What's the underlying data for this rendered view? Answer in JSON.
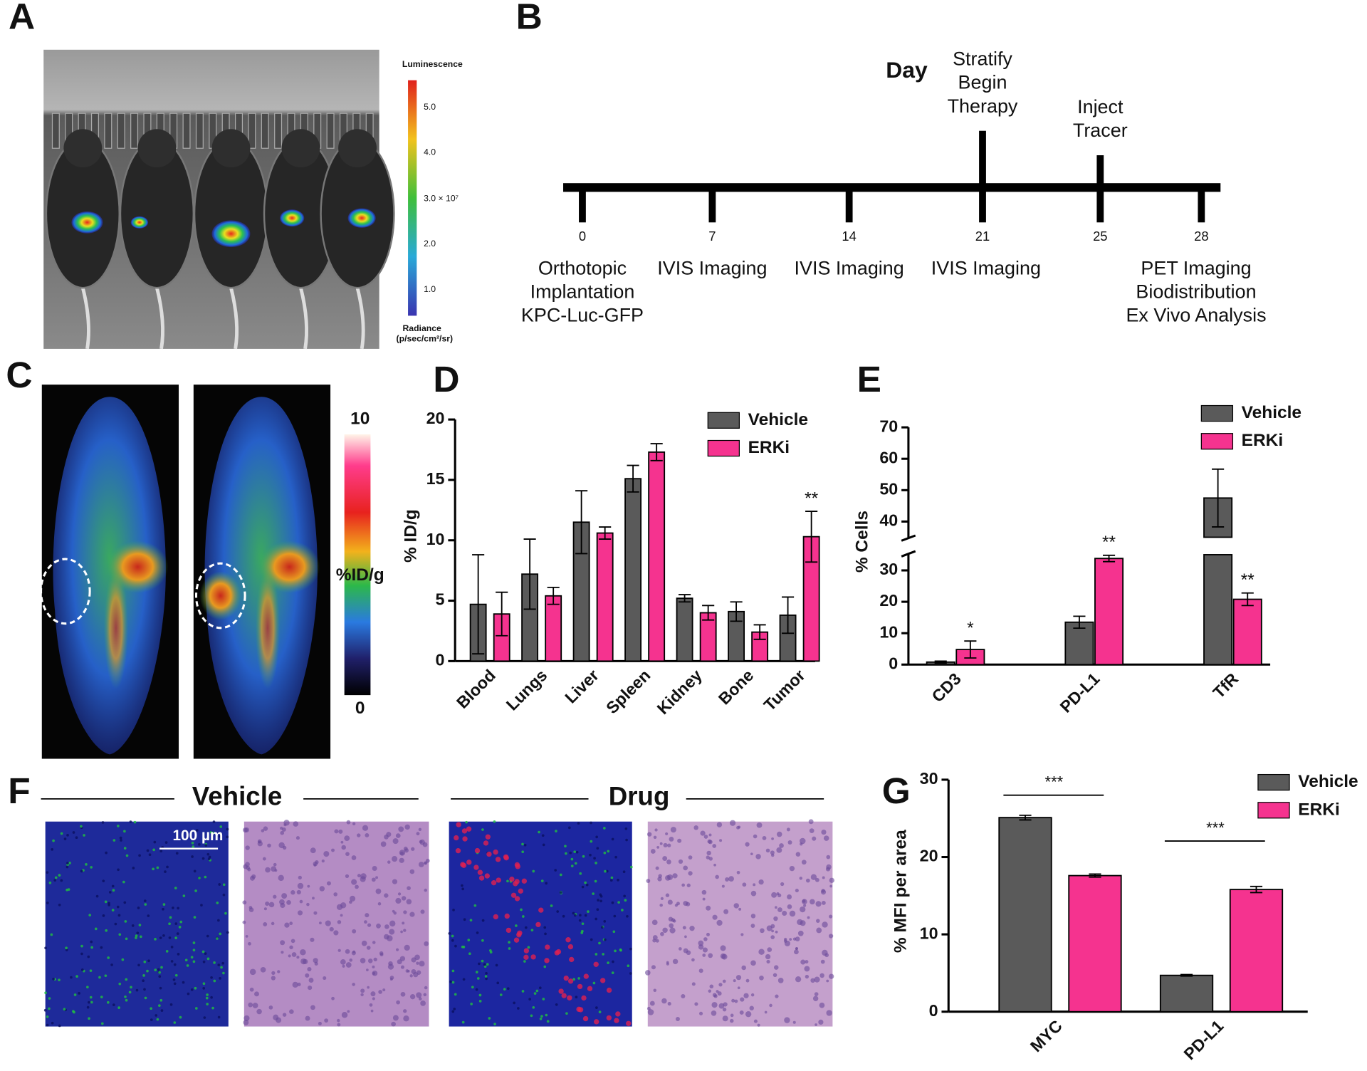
{
  "panel_labels": [
    "A",
    "B",
    "C",
    "D",
    "E",
    "F",
    "G"
  ],
  "panel_a": {
    "colorbar_title": "Luminescence",
    "colorbar_ticks": [
      "5.0",
      "4.0",
      "3.0 × 10⁷",
      "2.0",
      "1.0"
    ],
    "colorbar_unit": [
      "Radiance",
      "(p/sec/cm²/sr)"
    ]
  },
  "panel_b": {
    "title": "Day",
    "events": [
      {
        "day": "0",
        "below": [
          "Orthotopic",
          "Implantation",
          "KPC-Luc-GFP"
        ]
      },
      {
        "day": "7",
        "below": [
          "IVIS Imaging"
        ]
      },
      {
        "day": "14",
        "below": [
          "IVIS Imaging"
        ]
      },
      {
        "day": "21",
        "above": [
          "Stratify",
          "Begin",
          "Therapy"
        ],
        "below": [
          "IVIS Imaging"
        ]
      },
      {
        "day": "25",
        "above": [
          "Inject",
          "Tracer"
        ]
      },
      {
        "day": "28",
        "below": [
          "PET Imaging",
          "Biodistribution",
          "Ex Vivo Analysis"
        ]
      }
    ]
  },
  "panel_c": {
    "scale_max": "10",
    "scale_min": "0",
    "scale_unit": "%ID/g"
  },
  "panel_f": {
    "groups": [
      "Vehicle",
      "Drug"
    ],
    "scale_bar": "100 µm"
  },
  "chart_data": [
    {
      "type": "bar",
      "ylabel": "% ID/g",
      "categories": [
        "Blood",
        "Lungs",
        "Liver",
        "Spleen",
        "Kidney",
        "Bone",
        "Tumor"
      ],
      "series": [
        {
          "name": "Vehicle",
          "color": "#5a5a5a",
          "values": [
            4.7,
            7.2,
            11.5,
            15.1,
            5.2,
            4.1,
            3.8
          ],
          "errors": [
            4.1,
            2.9,
            2.6,
            1.1,
            0.3,
            0.8,
            1.5
          ]
        },
        {
          "name": "ERKi",
          "color": "#f5338f",
          "values": [
            3.9,
            5.4,
            10.6,
            17.3,
            4.0,
            2.4,
            10.3
          ],
          "errors": [
            1.8,
            0.7,
            0.5,
            0.7,
            0.6,
            0.6,
            2.1
          ],
          "significance": [
            null,
            null,
            null,
            null,
            null,
            null,
            "**"
          ]
        }
      ],
      "ylim": [
        0,
        20
      ],
      "yticks": [
        0,
        5,
        10,
        15,
        20
      ],
      "legend": "upper right"
    },
    {
      "type": "bar",
      "ylabel": "% Cells",
      "categories": [
        "CD3",
        "PD-L1",
        "TfR"
      ],
      "series": [
        {
          "name": "Vehicle",
          "color": "#5a5a5a",
          "values": [
            0.8,
            13.5,
            47.5
          ],
          "errors": [
            0.3,
            1.9,
            9.2
          ]
        },
        {
          "name": "ERKi",
          "color": "#f5338f",
          "values": [
            4.8,
            33.8,
            20.8
          ],
          "errors": [
            2.7,
            1.0,
            2.0
          ],
          "significance": [
            "*",
            "**",
            "**"
          ]
        }
      ],
      "ylim": [
        0,
        70
      ],
      "yticks": [
        0,
        10,
        20,
        30,
        40,
        50,
        60,
        70
      ],
      "ybreak": 35,
      "legend": "upper right"
    },
    {
      "type": "bar",
      "ylabel": "% MFI per area",
      "categories": [
        "MYC",
        "PD-L1"
      ],
      "series": [
        {
          "name": "Vehicle",
          "color": "#5a5a5a",
          "values": [
            25.1,
            4.7
          ],
          "errors": [
            0.3,
            0.1
          ]
        },
        {
          "name": "ERKi",
          "color": "#f5338f",
          "values": [
            17.6,
            15.8
          ],
          "errors": [
            0.2,
            0.4
          ]
        }
      ],
      "comparisons": [
        "***",
        "***"
      ],
      "ylim": [
        0,
        30
      ],
      "yticks": [
        0,
        10,
        20,
        30
      ],
      "legend": "upper right"
    }
  ]
}
